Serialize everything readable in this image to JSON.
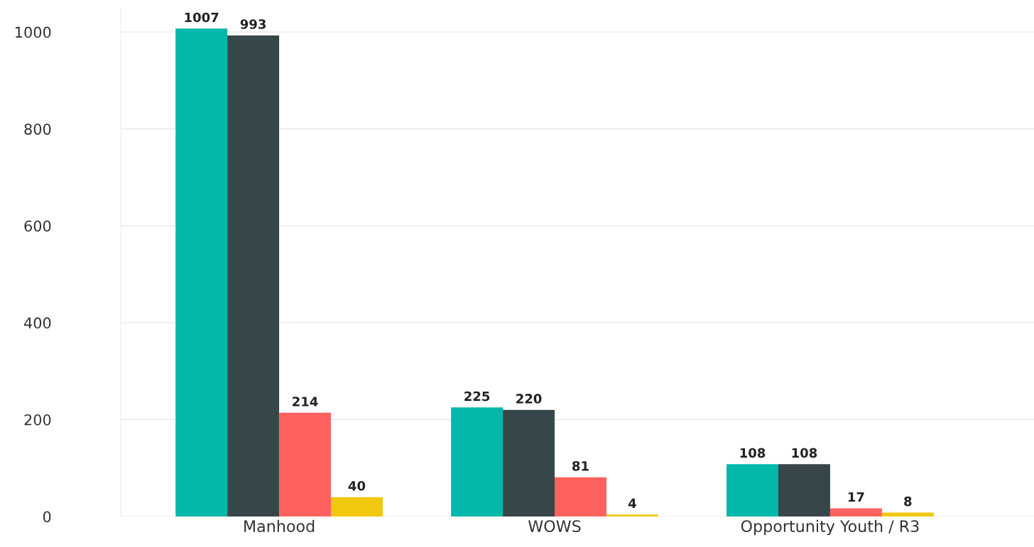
{
  "chart_data": {
    "type": "bar",
    "categories": [
      "Manhood",
      "WOWS",
      "Opportunity Youth / R3"
    ],
    "series": [
      {
        "color": "#01b8aa",
        "values": [
          1007,
          225,
          108
        ]
      },
      {
        "color": "#374649",
        "values": [
          993,
          220,
          108
        ]
      },
      {
        "color": "#fd625e",
        "values": [
          214,
          81,
          17
        ]
      },
      {
        "color": "#f2c80f",
        "values": [
          40,
          4,
          8
        ]
      }
    ],
    "ylim": [
      0,
      1050
    ],
    "yticks": [
      0,
      200,
      400,
      600,
      800,
      1000
    ],
    "grid": "y",
    "data_labels": true
  }
}
